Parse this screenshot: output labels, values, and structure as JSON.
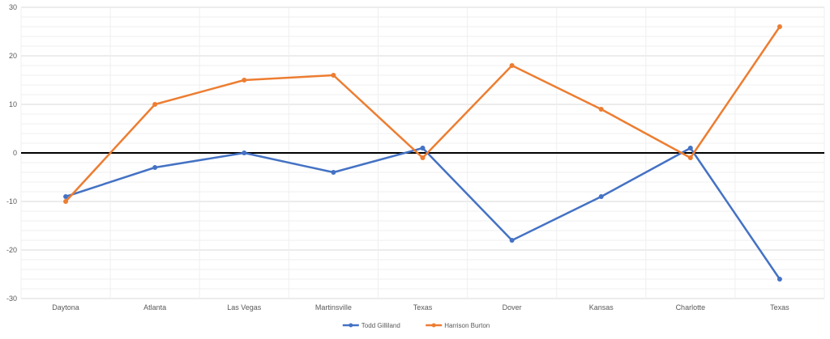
{
  "chart_data": {
    "type": "line",
    "title": "",
    "xlabel": "",
    "ylabel": "",
    "categories": [
      "Daytona",
      "Atlanta",
      "Las Vegas",
      "Martinsville",
      "Texas",
      "Dover",
      "Kansas",
      "Charlotte",
      "Texas"
    ],
    "ylim": [
      -30,
      30
    ],
    "y_major_ticks": [
      -30,
      -20,
      -10,
      0,
      10,
      20,
      30
    ],
    "y_minor_step": 2,
    "grid": true,
    "zero_line": true,
    "legend_position": "bottom",
    "series": [
      {
        "name": "Todd Gilliland",
        "color": "#4472C4",
        "values": [
          -9,
          -3,
          0,
          -4,
          1,
          -18,
          -9,
          1,
          -26
        ]
      },
      {
        "name": "Harrison Burton",
        "color": "#ED7D31",
        "values": [
          -10,
          10,
          15,
          16,
          -1,
          18,
          9,
          -1,
          26
        ]
      }
    ]
  }
}
